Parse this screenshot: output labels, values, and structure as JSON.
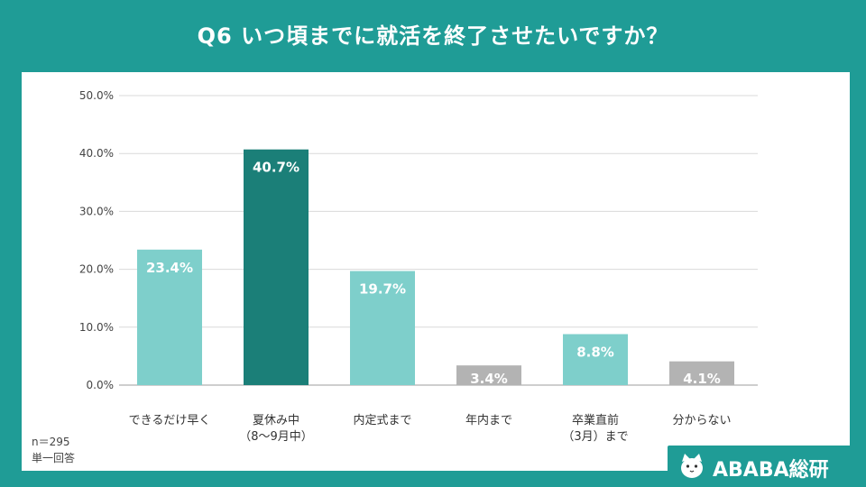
{
  "title": "Q6 いつ頃までに就活を終了させたいですか？",
  "notes": {
    "n": "n＝295",
    "type": "単一回答"
  },
  "brand": {
    "name": "ABABA総研",
    "icon": "cat-mascot-icon"
  },
  "colors": {
    "background": "#1f9c96",
    "bar_light": "#7ecfcb",
    "bar_dark": "#1b7f78",
    "bar_gray": "#b3b3b3",
    "grid": "#d9d9d9"
  },
  "chart_data": {
    "type": "bar",
    "categories": [
      [
        "できるだけ早く"
      ],
      [
        "夏休み中",
        "（8〜9月中）"
      ],
      [
        "内定式まで"
      ],
      [
        "年内まで"
      ],
      [
        "卒業直前",
        "（3月）まで"
      ],
      [
        "分からない"
      ]
    ],
    "values": [
      23.4,
      40.7,
      19.7,
      3.4,
      8.8,
      4.1
    ],
    "data_labels": [
      "23.4%",
      "40.7%",
      "19.7%",
      "3.4%",
      "8.8%",
      "4.1%"
    ],
    "bar_colors": [
      "#7ecfcb",
      "#1b7f78",
      "#7ecfcb",
      "#b3b3b3",
      "#7ecfcb",
      "#b3b3b3"
    ],
    "ylim": [
      0,
      50
    ],
    "yticks": [
      "0.0%",
      "10.0%",
      "20.0%",
      "30.0%",
      "40.0%",
      "50.0%"
    ],
    "grid": true,
    "legend": "none"
  }
}
